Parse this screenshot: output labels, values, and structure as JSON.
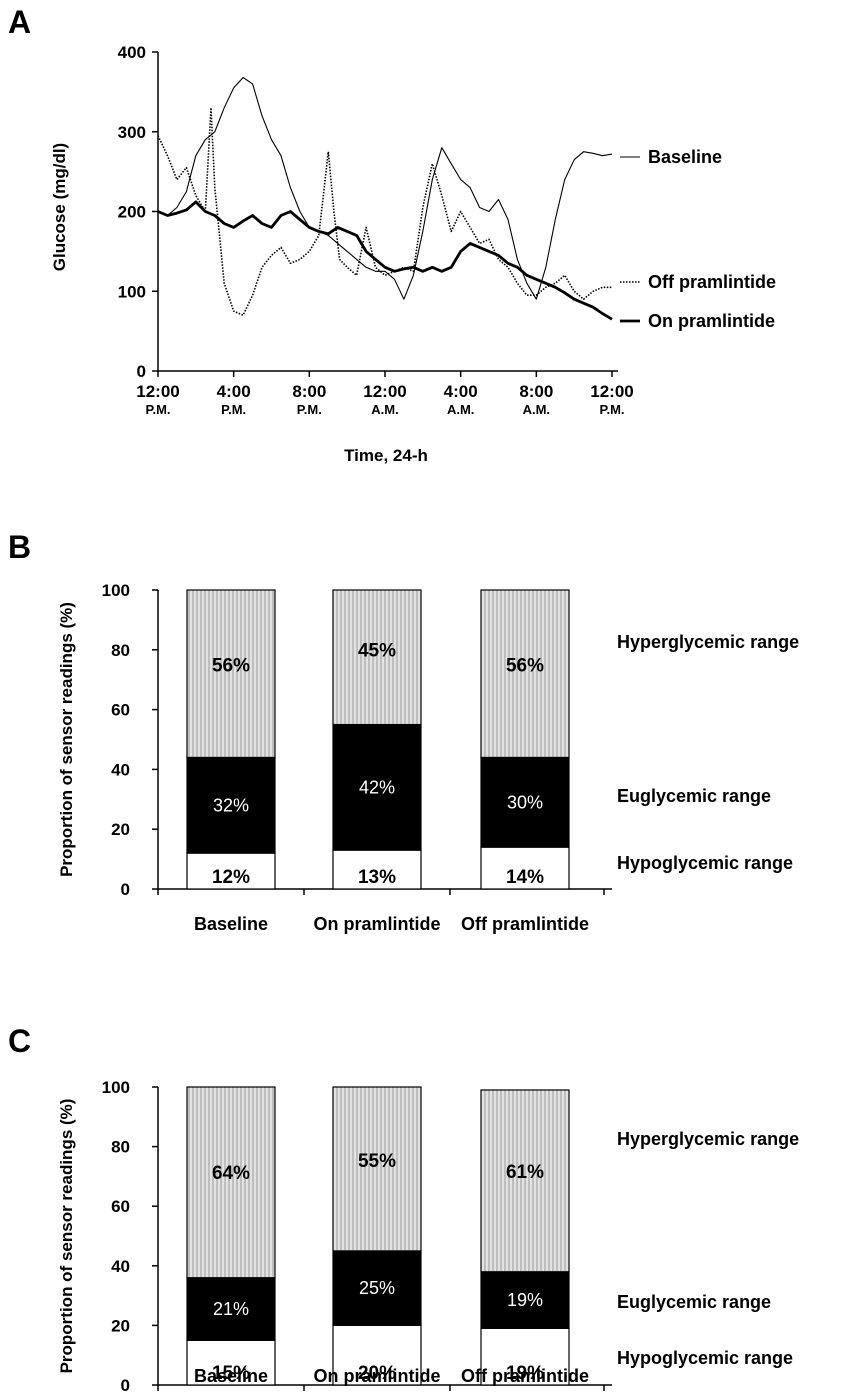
{
  "chart_data": [
    {
      "panel": "A",
      "type": "line",
      "ylabel": "Glucose (mg/dl)",
      "xlabel": "Time, 24-h",
      "ylim": [
        0,
        400
      ],
      "yticks": [
        "0",
        "100",
        "200",
        "300",
        "400"
      ],
      "xticks": [
        {
          "top": "12:00",
          "bottom": "P.M."
        },
        {
          "top": "4:00",
          "bottom": "P.M."
        },
        {
          "top": "8:00",
          "bottom": "P.M."
        },
        {
          "top": "12:00",
          "bottom": "A.M."
        },
        {
          "top": "4:00",
          "bottom": "A.M."
        },
        {
          "top": "8:00",
          "bottom": "A.M."
        },
        {
          "top": "12:00",
          "bottom": "P.M."
        }
      ],
      "xlim_hours": [
        0,
        24
      ],
      "series": [
        {
          "name": "Baseline",
          "style": "thin",
          "x": [
            0,
            0.5,
            1,
            1.5,
            2,
            2.5,
            3,
            3.5,
            4,
            4.5,
            5,
            5.5,
            6,
            6.5,
            7,
            7.5,
            8,
            8.5,
            9,
            9.5,
            10,
            10.5,
            11,
            11.5,
            12,
            12.5,
            13,
            13.5,
            14,
            14.5,
            15,
            15.5,
            16,
            16.5,
            17,
            17.5,
            18,
            18.5,
            19,
            19.5,
            20,
            20.5,
            21,
            21.5,
            22,
            22.5,
            23,
            23.5,
            24
          ],
          "y": [
            200,
            195,
            205,
            225,
            270,
            290,
            300,
            330,
            355,
            368,
            360,
            320,
            290,
            270,
            230,
            200,
            180,
            175,
            170,
            160,
            150,
            140,
            130,
            125,
            125,
            115,
            90,
            120,
            175,
            240,
            280,
            260,
            240,
            230,
            205,
            200,
            215,
            190,
            140,
            110,
            90,
            130,
            190,
            240,
            265,
            275,
            273,
            270,
            272
          ]
        },
        {
          "name": "Off pramlintide",
          "style": "dotted",
          "x": [
            0,
            0.5,
            1,
            1.5,
            2,
            2.5,
            2.8,
            3,
            3.5,
            4,
            4.5,
            5,
            5.5,
            6,
            6.5,
            7,
            7.5,
            8,
            8.5,
            9,
            9.3,
            9.6,
            10,
            10.5,
            11,
            11.5,
            12,
            12.5,
            13,
            13.5,
            14,
            14.5,
            15,
            15.5,
            16,
            16.5,
            17,
            17.5,
            18,
            18.5,
            19,
            19.5,
            20,
            20.5,
            21,
            21.5,
            22,
            22.5,
            23,
            23.5,
            24
          ],
          "y": [
            295,
            270,
            240,
            255,
            220,
            200,
            330,
            230,
            110,
            75,
            70,
            95,
            130,
            145,
            155,
            135,
            140,
            150,
            170,
            275,
            200,
            140,
            130,
            120,
            180,
            130,
            120,
            125,
            130,
            125,
            205,
            260,
            220,
            175,
            200,
            180,
            160,
            165,
            140,
            130,
            110,
            95,
            95,
            105,
            110,
            120,
            100,
            90,
            100,
            105,
            105
          ]
        },
        {
          "name": "On pramlintide",
          "style": "thick",
          "x": [
            0,
            0.5,
            1,
            1.5,
            2,
            2.5,
            3,
            3.5,
            4,
            4.5,
            5,
            5.5,
            6,
            6.5,
            7,
            7.5,
            8,
            8.5,
            9,
            9.5,
            10,
            10.5,
            11,
            11.5,
            12,
            12.5,
            13,
            13.5,
            14,
            14.5,
            15,
            15.5,
            16,
            16.5,
            17,
            17.5,
            18,
            18.5,
            19,
            19.5,
            20,
            20.5,
            21,
            21.5,
            22,
            22.5,
            23,
            23.5,
            24
          ],
          "y": [
            200,
            195,
            198,
            202,
            212,
            200,
            195,
            185,
            180,
            188,
            195,
            185,
            180,
            195,
            200,
            190,
            180,
            175,
            172,
            180,
            175,
            170,
            150,
            140,
            130,
            125,
            128,
            130,
            125,
            130,
            125,
            130,
            150,
            160,
            155,
            150,
            145,
            135,
            130,
            120,
            115,
            110,
            105,
            98,
            90,
            85,
            80,
            72,
            65
          ]
        }
      ]
    },
    {
      "panel": "B",
      "type": "bar",
      "stacked": true,
      "ylabel": "Proportion of sensor readings (%)",
      "ylim": [
        0,
        100
      ],
      "yticks": [
        "0",
        "20",
        "40",
        "60",
        "80",
        "100"
      ],
      "categories": [
        "Baseline",
        "On pramlintide",
        "Off pramlintide"
      ],
      "series": [
        {
          "name": "Hypoglycemic range",
          "values": [
            12,
            13,
            14
          ],
          "labels": [
            "12%",
            "13%",
            "14%"
          ]
        },
        {
          "name": "Euglycemic range",
          "values": [
            32,
            42,
            30
          ],
          "labels": [
            "32%",
            "42%",
            "30%"
          ]
        },
        {
          "name": "Hyperglycemic range",
          "values": [
            56,
            45,
            56
          ],
          "labels": [
            "56%",
            "45%",
            "56%"
          ]
        }
      ]
    },
    {
      "panel": "C",
      "type": "bar",
      "stacked": true,
      "ylabel": "Proportion of sensor readings (%)",
      "ylim": [
        0,
        100
      ],
      "yticks": [
        "0",
        "20",
        "40",
        "60",
        "80",
        "100"
      ],
      "categories": [
        "Baseline",
        "On pramlintide",
        "Off pramlintide"
      ],
      "series": [
        {
          "name": "Hypoglycemic range",
          "values": [
            15,
            20,
            19
          ],
          "labels": [
            "15%",
            "20%",
            "19%"
          ]
        },
        {
          "name": "Euglycemic range",
          "values": [
            21,
            25,
            19
          ],
          "labels": [
            "21%",
            "25%",
            "19%"
          ]
        },
        {
          "name": "Hyperglycemic range",
          "values": [
            64,
            55,
            61
          ],
          "labels": [
            "64%",
            "55%",
            "61%"
          ]
        }
      ]
    }
  ],
  "colors": {
    "hyperglycemic_fill": "#d6d6d6",
    "euglycemic_fill": "#000000",
    "hypoglycemic_fill": "#ffffff",
    "line": "#000000"
  }
}
